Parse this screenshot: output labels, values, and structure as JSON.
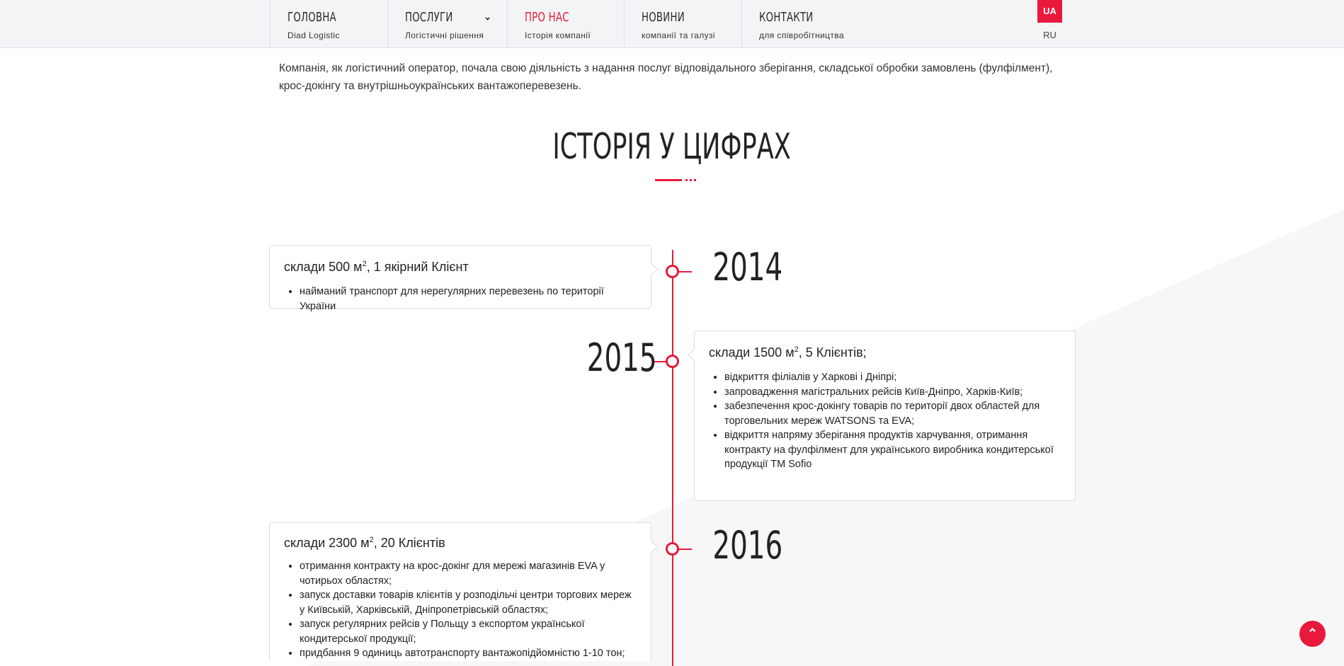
{
  "nav": {
    "items": [
      {
        "label": "ГОЛОВНА",
        "sub": "Diad Logistic"
      },
      {
        "label": "ПОСЛУГИ",
        "sub": "Логістичні рішення"
      },
      {
        "label": "ПРО НАС",
        "sub": "Історія компанії"
      },
      {
        "label": "НОВИНИ",
        "sub": "компанії та галузі"
      },
      {
        "label": "КОНТАКТИ",
        "sub": "для співробітництва"
      }
    ],
    "active": "ПРО НАС",
    "lang_active": "UA",
    "lang_other": "RU"
  },
  "intro": "Компанія, як логістичний оператор, почала свою діяльність з надання послуг відповідального зберігання, складської обробки замовлень (фулфілмент), крос-докінгу та внутрішньоукраїнських вантажоперевезень.",
  "section_title": "ІСТОРІЯ У ЦИФРАХ",
  "timeline": [
    {
      "year": "2014",
      "title_prefix": "склади 500 м",
      "title_sup": "2",
      "title_suffix": ", 1 якірний Клієнт",
      "items": [
        "найманий транспорт для нерегулярних перевезень по території України"
      ]
    },
    {
      "year": "2015",
      "title_prefix": "склади 1500 м",
      "title_sup": "2",
      "title_suffix": ", 5 Клієнтів;",
      "items": [
        "відкриття філіалів у Харкові і Дніпрі;",
        "запровадження магістральних рейсів Київ-Дніпро, Харків-Київ;",
        "забезпечення крос-докінгу товарів по території двох областей для торговельних мереж WATSONS та EVA;",
        "відкриття напряму зберігання продуктів харчування, отримання контракту на фулфілмент для українського виробника кондитерської продукції ТМ Sofio"
      ]
    },
    {
      "year": "2016",
      "title_prefix": "склади 2300 м",
      "title_sup": "2",
      "title_suffix": ", 20 Клієнтів",
      "items": [
        "отримання контракту на крос-докінг для мережі магазинів EVA у чотирьох областях;",
        "запуск доставки товарів клієнтів у розподільчі центри торгових мереж у Київській, Харківській, Дніпропетрівській областях;",
        "запуск регулярних рейсів у Польщу з експортом української кондитерської продукції;",
        "придбання 9 одиниць автотранспорту вантажопідйомністю 1-10 тон;"
      ]
    }
  ],
  "scroll_top_icon": "chevron-up-icon",
  "colors": {
    "accent": "#e8193c"
  }
}
